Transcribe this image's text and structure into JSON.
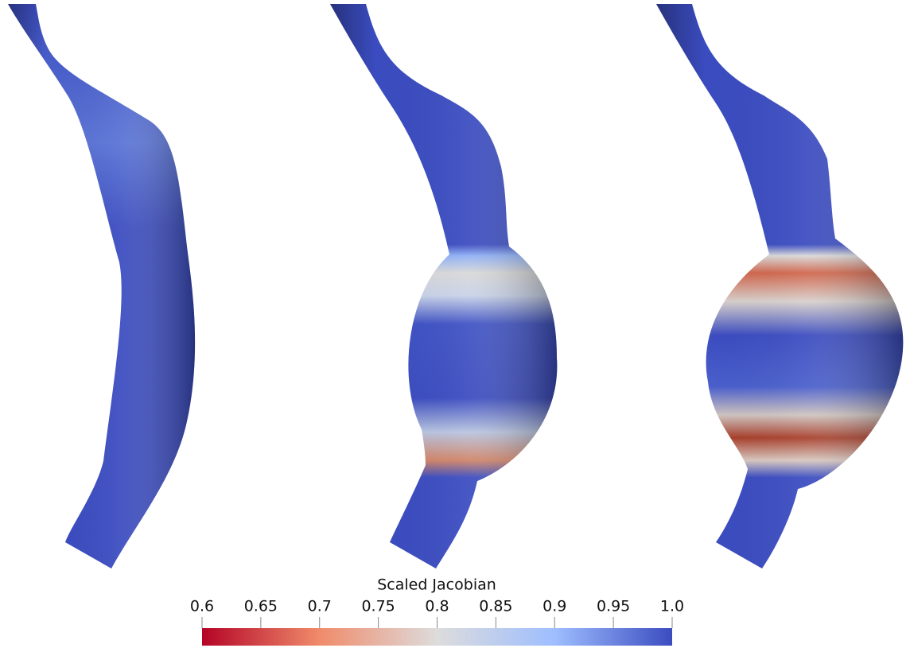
{
  "colorbar": {
    "title": "Scaled Jacobian",
    "range": [
      0.6,
      1.0
    ],
    "ticks": [
      0.6,
      0.65,
      0.7,
      0.75,
      0.8,
      0.85,
      0.9,
      0.95,
      {
        "value": 1.0,
        "label": "1.0"
      }
    ]
  }
}
